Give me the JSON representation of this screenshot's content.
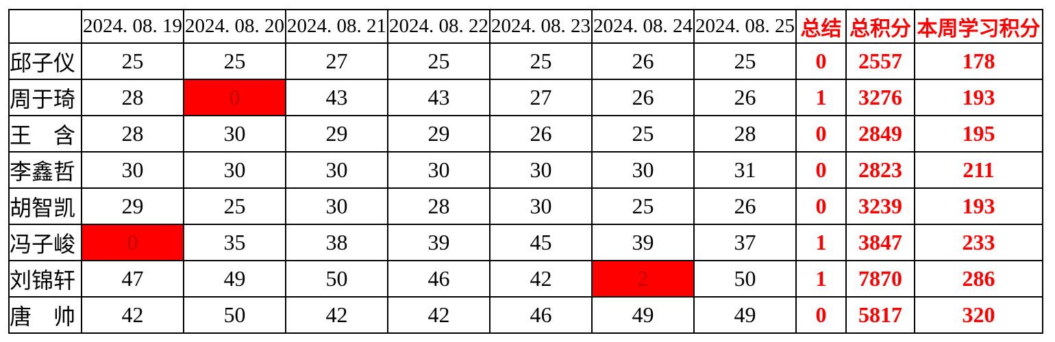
{
  "colors": {
    "red_text": "#FE0000",
    "highlight_background": "#FE0000",
    "highlight_text": "#C00000",
    "grid_border": "#000000",
    "background": "#FFFFFF"
  },
  "table": {
    "header": {
      "corner": "",
      "dates": [
        "2024. 08. 19",
        "2024. 08. 20",
        "2024. 08. 21",
        "2024. 08. 22",
        "2024. 08. 23",
        "2024. 08. 24",
        "2024. 08. 25"
      ],
      "summary": [
        "总结",
        "总积分",
        "本周学习积分"
      ]
    },
    "rows": [
      {
        "name": "邱子仪",
        "daily": [
          "25",
          "25",
          "27",
          "25",
          "25",
          "26",
          "25"
        ],
        "highlight_day": null,
        "summary": "0",
        "total_points": "2557",
        "week_points": "178"
      },
      {
        "name": "周于琦",
        "daily": [
          "28",
          "0",
          "43",
          "43",
          "27",
          "26",
          "26"
        ],
        "highlight_day": 1,
        "summary": "1",
        "total_points": "3276",
        "week_points": "193"
      },
      {
        "name": "王　含",
        "daily": [
          "28",
          "30",
          "29",
          "29",
          "26",
          "25",
          "28"
        ],
        "highlight_day": null,
        "summary": "0",
        "total_points": "2849",
        "week_points": "195"
      },
      {
        "name": "李鑫哲",
        "daily": [
          "30",
          "30",
          "30",
          "30",
          "30",
          "30",
          "31"
        ],
        "highlight_day": null,
        "summary": "0",
        "total_points": "2823",
        "week_points": "211"
      },
      {
        "name": "胡智凯",
        "daily": [
          "29",
          "25",
          "30",
          "28",
          "30",
          "25",
          "26"
        ],
        "highlight_day": null,
        "summary": "0",
        "total_points": "3239",
        "week_points": "193"
      },
      {
        "name": "冯子峻",
        "daily": [
          "0",
          "35",
          "38",
          "39",
          "45",
          "39",
          "37"
        ],
        "highlight_day": 0,
        "summary": "1",
        "total_points": "3847",
        "week_points": "233"
      },
      {
        "name": "刘锦轩",
        "daily": [
          "47",
          "49",
          "50",
          "46",
          "42",
          "2",
          "50"
        ],
        "highlight_day": 5,
        "summary": "1",
        "total_points": "7870",
        "week_points": "286"
      },
      {
        "name": "唐　帅",
        "daily": [
          "42",
          "50",
          "42",
          "42",
          "46",
          "49",
          "49"
        ],
        "highlight_day": null,
        "summary": "0",
        "total_points": "5817",
        "week_points": "320"
      }
    ]
  }
}
